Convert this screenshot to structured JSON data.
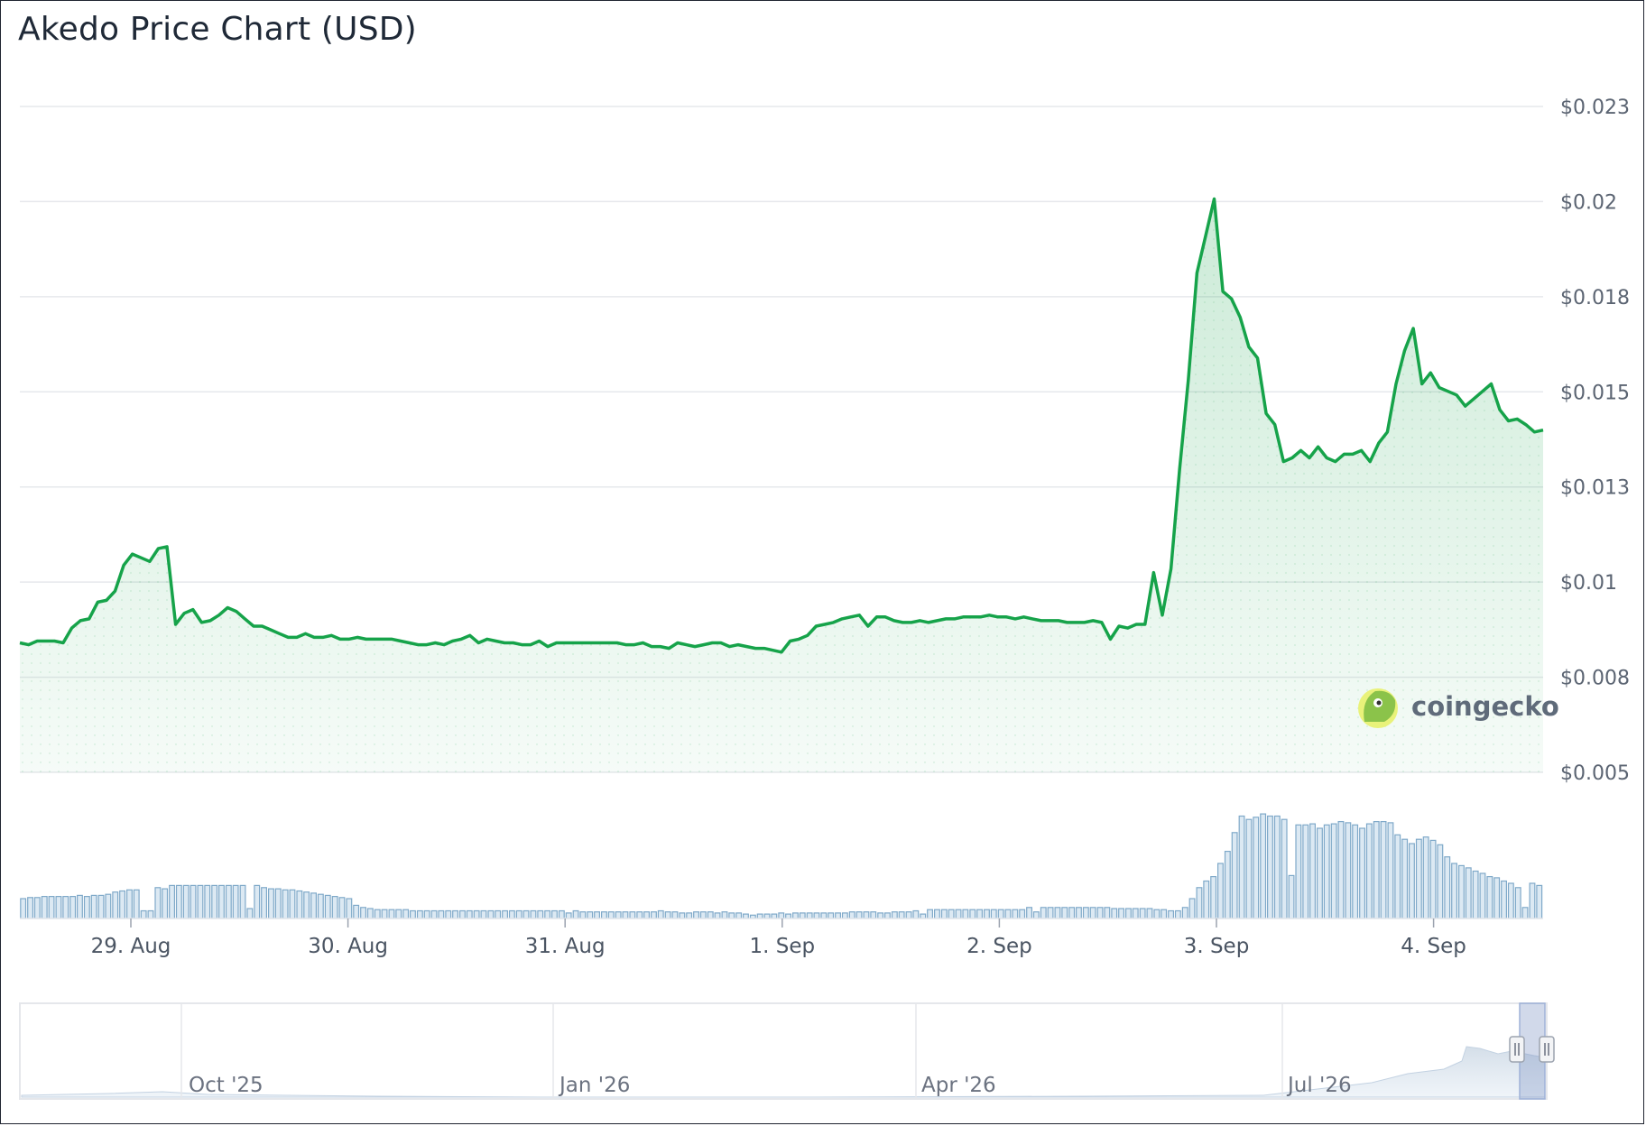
{
  "chart_data": {
    "type": "area",
    "title": "Akedo Price Chart (USD)",
    "currency": "USD",
    "y_tick_labels": [
      "$0.023",
      "$0.02",
      "$0.018",
      "$0.015",
      "$0.013",
      "$0.01",
      "$0.008",
      "$0.005"
    ],
    "ylim": [
      0.005,
      0.023
    ],
    "x_tick_labels": [
      "29. Aug",
      "30. Aug",
      "31. Aug",
      "1. Sep",
      "2. Sep",
      "3. Sep",
      "4. Sep"
    ],
    "xlim_days": [
      "2025-08-28T11:00",
      "2025-09-04T12:00"
    ],
    "grid": true,
    "line_color": "#16a34a",
    "fill_color": "#16a34a",
    "volume_color": "#7fa9c9",
    "series": [
      {
        "values": [
          0.0085,
          0.00845,
          0.00855,
          0.00855,
          0.00855,
          0.0085,
          0.0089,
          0.0091,
          0.00915,
          0.0096,
          0.00965,
          0.0099,
          0.0106,
          0.0109,
          0.0108,
          0.0107,
          0.01105,
          0.0111,
          0.009,
          0.0093,
          0.0094,
          0.00905,
          0.0091,
          0.00925,
          0.00945,
          0.00935,
          0.00915,
          0.00895,
          0.00895,
          0.00885,
          0.00875,
          0.00865,
          0.00865,
          0.00875,
          0.00865,
          0.00865,
          0.0087,
          0.0086,
          0.0086,
          0.00865,
          0.0086,
          0.0086,
          0.0086,
          0.0086,
          0.00855,
          0.0085,
          0.00845,
          0.00845,
          0.0085,
          0.00845,
          0.00855,
          0.0086,
          0.0087,
          0.0085,
          0.0086,
          0.00855,
          0.0085,
          0.0085,
          0.00845,
          0.00845,
          0.00855,
          0.0084,
          0.0085,
          0.0085,
          0.0085,
          0.0085,
          0.0085,
          0.0085,
          0.0085,
          0.0085,
          0.00845,
          0.00845,
          0.0085,
          0.0084,
          0.0084,
          0.00835,
          0.0085,
          0.00845,
          0.0084,
          0.00845,
          0.0085,
          0.0085,
          0.0084,
          0.00845,
          0.0084,
          0.00835,
          0.00835,
          0.0083,
          0.00825,
          0.00855,
          0.0086,
          0.0087,
          0.00895,
          0.009,
          0.00905,
          0.00915,
          0.0092,
          0.00925,
          0.00895,
          0.0092,
          0.0092,
          0.0091,
          0.00905,
          0.00905,
          0.0091,
          0.00905,
          0.0091,
          0.00915,
          0.00915,
          0.0092,
          0.0092,
          0.0092,
          0.00925,
          0.0092,
          0.0092,
          0.00915,
          0.0092,
          0.00915,
          0.0091,
          0.0091,
          0.0091,
          0.00905,
          0.00905,
          0.00905,
          0.0091,
          0.00905,
          0.0086,
          0.00895,
          0.0089,
          0.009,
          0.009,
          0.0104,
          0.00925,
          0.0105,
          0.0132,
          0.0156,
          0.0185,
          0.0195,
          0.0205,
          0.018,
          0.0178,
          0.0173,
          0.0165,
          0.0162,
          0.0147,
          0.0144,
          0.0134,
          0.0135,
          0.0137,
          0.0135,
          0.0138,
          0.0135,
          0.0134,
          0.0136,
          0.0136,
          0.0137,
          0.0134,
          0.0139,
          0.0142,
          0.0155,
          0.0164,
          0.017,
          0.0155,
          0.0158,
          0.0154,
          0.0153,
          0.0152,
          0.0149,
          0.0151,
          0.0153,
          0.0155,
          0.0148,
          0.0145,
          0.01455,
          0.0144,
          0.0142,
          0.01425
        ]
      }
    ],
    "volume": [
      0.18,
      0.19,
      0.19,
      0.2,
      0.2,
      0.2,
      0.2,
      0.2,
      0.21,
      0.2,
      0.21,
      0.21,
      0.22,
      0.24,
      0.25,
      0.26,
      0.26,
      0.07,
      0.07,
      0.28,
      0.27,
      0.3,
      0.3,
      0.3,
      0.3,
      0.3,
      0.3,
      0.3,
      0.3,
      0.3,
      0.3,
      0.3,
      0.09,
      0.3,
      0.28,
      0.27,
      0.27,
      0.26,
      0.26,
      0.25,
      0.24,
      0.23,
      0.22,
      0.21,
      0.2,
      0.19,
      0.18,
      0.12,
      0.1,
      0.09,
      0.08,
      0.08,
      0.08,
      0.08,
      0.08,
      0.07,
      0.07,
      0.07,
      0.07,
      0.07,
      0.07,
      0.07,
      0.07,
      0.07,
      0.07,
      0.07,
      0.07,
      0.07,
      0.07,
      0.07,
      0.07,
      0.07,
      0.07,
      0.07,
      0.07,
      0.07,
      0.07,
      0.05,
      0.07,
      0.06,
      0.06,
      0.06,
      0.06,
      0.06,
      0.06,
      0.06,
      0.06,
      0.06,
      0.06,
      0.06,
      0.07,
      0.06,
      0.06,
      0.05,
      0.05,
      0.06,
      0.06,
      0.06,
      0.05,
      0.06,
      0.05,
      0.05,
      0.04,
      0.03,
      0.04,
      0.04,
      0.04,
      0.05,
      0.04,
      0.05,
      0.05,
      0.05,
      0.05,
      0.05,
      0.05,
      0.05,
      0.05,
      0.06,
      0.06,
      0.06,
      0.06,
      0.05,
      0.05,
      0.06,
      0.06,
      0.06,
      0.07,
      0.04,
      0.08,
      0.08,
      0.08,
      0.08,
      0.08,
      0.08,
      0.08,
      0.08,
      0.08,
      0.08,
      0.08,
      0.08,
      0.08,
      0.08,
      0.1,
      0.06,
      0.1,
      0.1,
      0.1,
      0.1,
      0.1,
      0.1,
      0.1,
      0.1,
      0.1,
      0.1,
      0.09,
      0.09,
      0.09,
      0.09,
      0.09,
      0.09,
      0.08,
      0.08,
      0.07,
      0.07,
      0.1,
      0.18,
      0.28,
      0.34,
      0.38,
      0.5,
      0.61,
      0.78,
      0.93,
      0.9,
      0.92,
      0.95,
      0.93,
      0.93,
      0.9,
      0.39,
      0.85,
      0.85,
      0.86,
      0.82,
      0.85,
      0.86,
      0.88,
      0.87,
      0.85,
      0.82,
      0.86,
      0.88,
      0.88,
      0.87,
      0.76,
      0.72,
      0.68,
      0.72,
      0.74,
      0.71,
      0.67,
      0.56,
      0.5,
      0.48,
      0.46,
      0.43,
      0.41,
      0.38,
      0.37,
      0.34,
      0.32,
      0.28,
      0.1,
      0.32,
      0.3
    ]
  },
  "navigator": {
    "labels": [
      "Oct '25",
      "Jan '26",
      "Apr '26",
      "Jul '26"
    ]
  },
  "watermark": {
    "brand": "coingecko",
    "icon": "coingecko-gecko-icon"
  }
}
